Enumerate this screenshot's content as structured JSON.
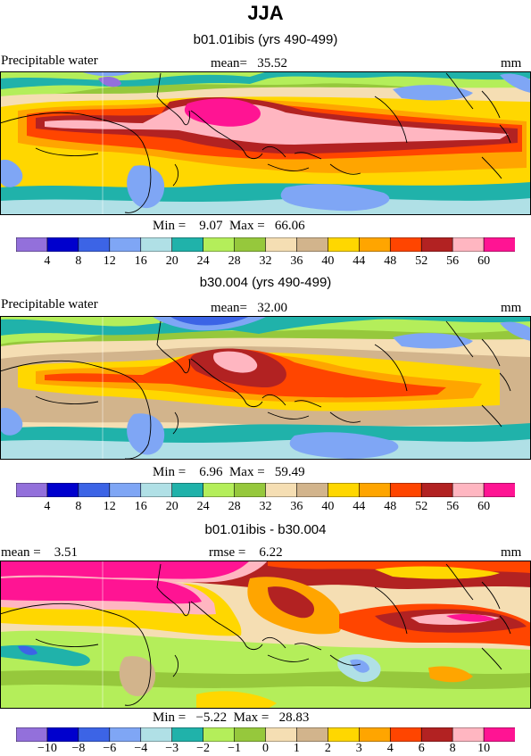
{
  "title": "JJA",
  "panels": [
    {
      "title": "b01.01ibis (yrs 490-499)",
      "left_label": "Precipitable water",
      "center_label": "mean=   35.52",
      "units": "mm",
      "stats": "Min =    9.07  Max =   66.06",
      "color_levels": [
        "4",
        "8",
        "12",
        "16",
        "20",
        "24",
        "28",
        "32",
        "36",
        "40",
        "44",
        "48",
        "52",
        "56",
        "60"
      ]
    },
    {
      "title": "b30.004 (yrs 490-499)",
      "left_label": "Precipitable water",
      "center_label": "mean=   32.00",
      "units": "mm",
      "stats": "Min =    6.96  Max =   59.49",
      "color_levels": [
        "4",
        "8",
        "12",
        "16",
        "20",
        "24",
        "28",
        "32",
        "36",
        "40",
        "44",
        "48",
        "52",
        "56",
        "60"
      ]
    },
    {
      "title": "b01.01ibis - b30.004",
      "left_label": "mean =    3.51",
      "center_label": "rmse =    6.22",
      "units": "mm",
      "stats": "Min =   −5.22  Max =   28.83",
      "color_levels": [
        "−10",
        "−8",
        "−6",
        "−4",
        "−3",
        "−2",
        "−1",
        "0",
        "1",
        "2",
        "3",
        "4",
        "6",
        "8",
        "10"
      ]
    }
  ],
  "palette": [
    "#9370db",
    "#0000cd",
    "#3c64e6",
    "#7fa6f5",
    "#b0e0e6",
    "#20b2aa",
    "#b4ee5a",
    "#96c83c",
    "#f5deb3",
    "#d2b48c",
    "#ffd700",
    "#ffa500",
    "#ff4500",
    "#b22222",
    "#ffb6c1",
    "#ff1493"
  ]
}
